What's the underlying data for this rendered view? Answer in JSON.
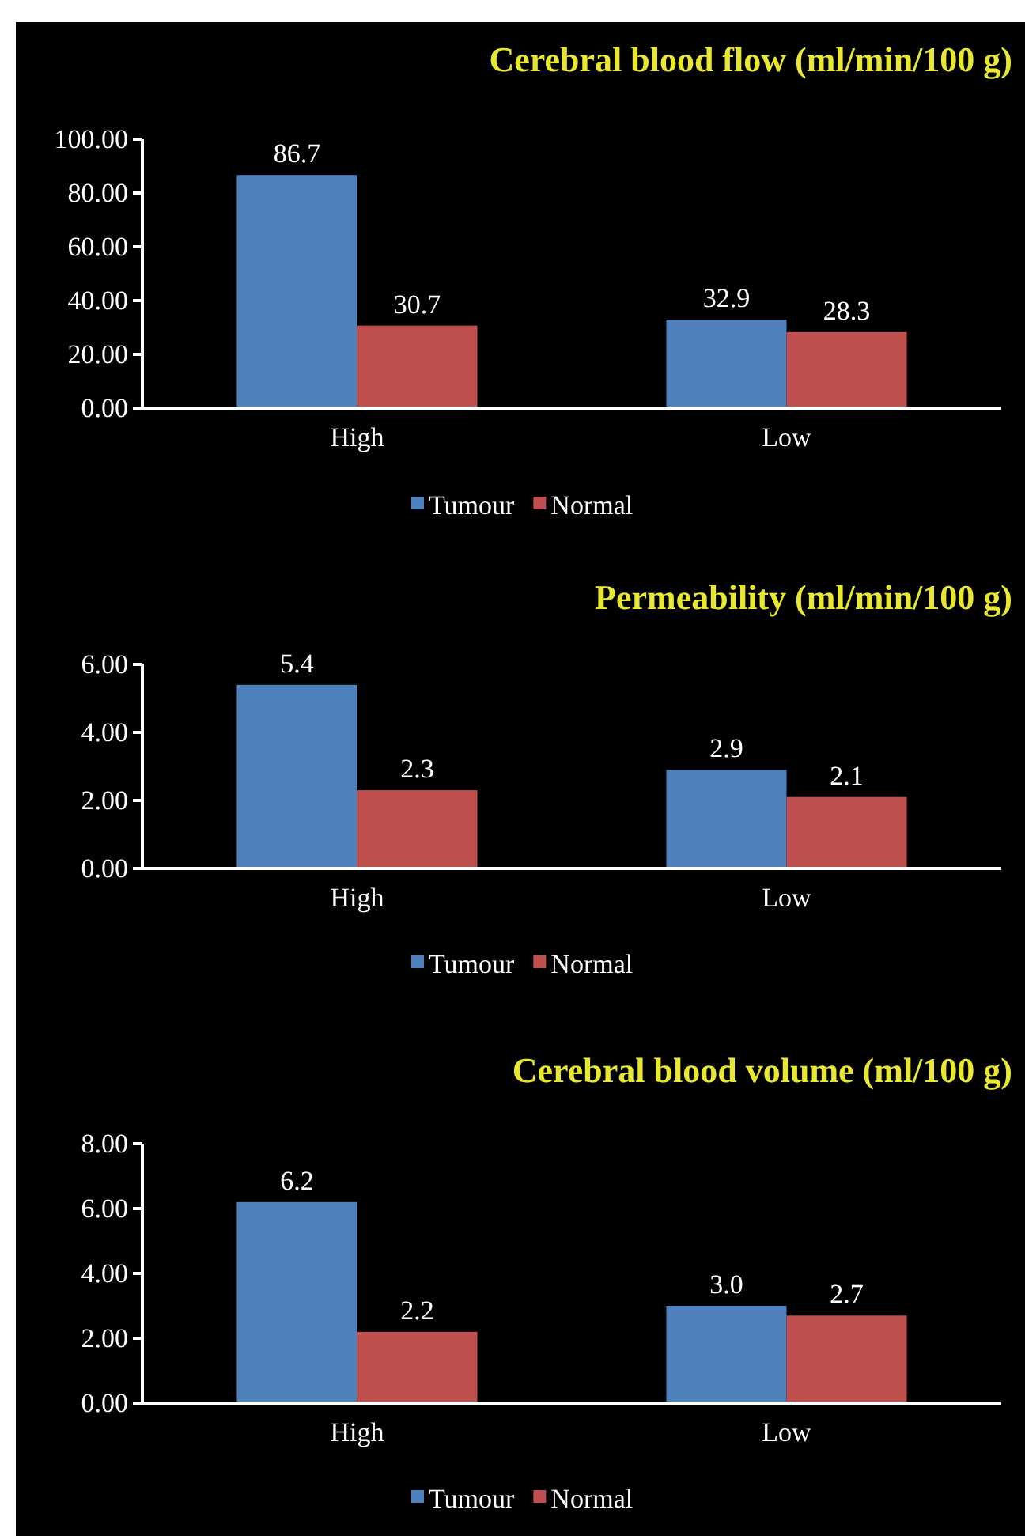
{
  "chart_data": [
    {
      "type": "bar",
      "title": "Cerebral blood flow (ml/min/100 g)",
      "categories": [
        "High",
        "Low"
      ],
      "series": [
        {
          "name": "Tumour",
          "color": "#4f81bd",
          "values": [
            86.7,
            32.9
          ]
        },
        {
          "name": "Normal",
          "color": "#c0504d",
          "values": [
            30.7,
            28.3
          ]
        }
      ],
      "ylim": [
        0,
        100
      ],
      "yticks": [
        {
          "value": 0,
          "label": "0.00"
        },
        {
          "value": 20,
          "label": "20.00"
        },
        {
          "value": 40,
          "label": "40.00"
        },
        {
          "value": 60,
          "label": "60.00"
        },
        {
          "value": 80,
          "label": "80.00"
        },
        {
          "value": 100,
          "label": "100.00"
        }
      ],
      "data_labels": true,
      "legend": "bottom",
      "grid": false
    },
    {
      "type": "bar",
      "title": "Permeability (ml/min/100 g)",
      "categories": [
        "High",
        "Low"
      ],
      "series": [
        {
          "name": "Tumour",
          "color": "#4f81bd",
          "values": [
            5.4,
            2.9
          ]
        },
        {
          "name": "Normal",
          "color": "#c0504d",
          "values": [
            2.3,
            2.1
          ]
        }
      ],
      "ylim": [
        0,
        6
      ],
      "yticks": [
        {
          "value": 0,
          "label": "0.00"
        },
        {
          "value": 2,
          "label": "2.00"
        },
        {
          "value": 4,
          "label": "4.00"
        },
        {
          "value": 6,
          "label": "6.00"
        }
      ],
      "data_labels": true,
      "legend": "bottom",
      "grid": false
    },
    {
      "type": "bar",
      "title": "Cerebral blood volume (ml/100 g)",
      "categories": [
        "High",
        "Low"
      ],
      "series": [
        {
          "name": "Tumour",
          "color": "#4f81bd",
          "values": [
            6.2,
            3.0
          ],
          "value_labels": [
            "6.2",
            "3.0"
          ]
        },
        {
          "name": "Normal",
          "color": "#c0504d",
          "values": [
            2.2,
            2.7
          ],
          "value_labels": [
            "2.2",
            "2.7"
          ]
        }
      ],
      "ylim": [
        0,
        8
      ],
      "yticks": [
        {
          "value": 0,
          "label": "0.00"
        },
        {
          "value": 2,
          "label": "2.00"
        },
        {
          "value": 4,
          "label": "4.00"
        },
        {
          "value": 6,
          "label": "6.00"
        },
        {
          "value": 8,
          "label": "8.00"
        }
      ],
      "legend": "bottom",
      "grid": false
    }
  ]
}
